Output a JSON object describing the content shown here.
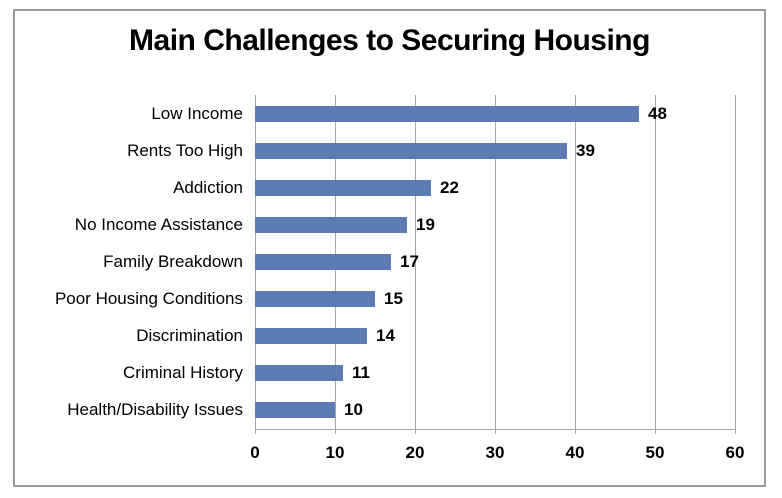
{
  "chart": {
    "title": "Main Challenges to Securing Housing"
  },
  "chart_data": {
    "type": "bar",
    "orientation": "horizontal",
    "title": "Main Challenges to Securing Housing",
    "categories": [
      "Low Income",
      "Rents Too High",
      "Addiction",
      "No Income Assistance",
      "Family Breakdown",
      "Poor Housing Conditions",
      "Discrimination",
      "Criminal History",
      "Health/Disability Issues"
    ],
    "values": [
      48,
      39,
      22,
      19,
      17,
      15,
      14,
      11,
      10
    ],
    "data_labels_shown": true,
    "xlabel": "",
    "ylabel": "",
    "xlim": [
      0,
      60
    ],
    "xticks": [
      0,
      10,
      20,
      30,
      40,
      50,
      60
    ],
    "grid": "vertical-major",
    "legend_position": "none",
    "colors": {
      "bar": "#5b7bb5",
      "gridline": "#a6a6a6",
      "axis": "#a6a6a6",
      "frame_border": "#9b9b9b",
      "text": "#000000",
      "background": "#ffffff"
    }
  }
}
